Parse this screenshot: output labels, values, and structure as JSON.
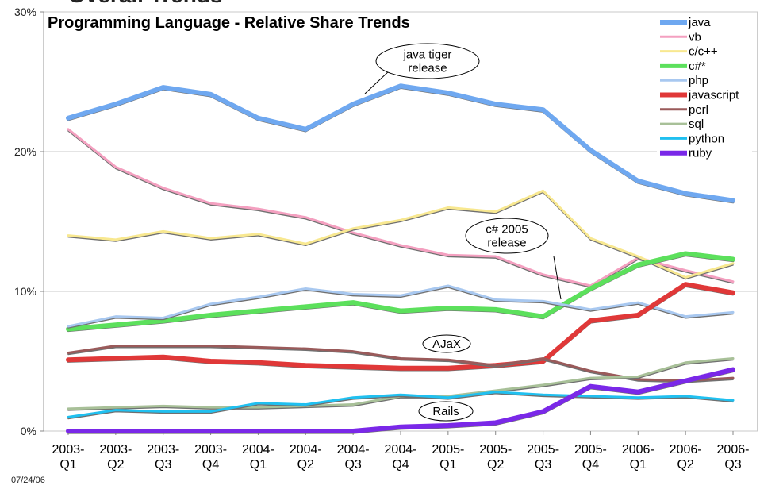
{
  "cut_title": "Overall Trends",
  "date_stamp": "07/24/06",
  "chart_data": {
    "type": "line",
    "title": "Programming Language - Relative Share Trends",
    "xlabel": "",
    "ylabel": "",
    "ylim": [
      0,
      30
    ],
    "yticks": [
      {
        "value": 0,
        "label": "0%"
      },
      {
        "value": 10,
        "label": "10%"
      },
      {
        "value": 20,
        "label": "20%"
      },
      {
        "value": 30,
        "label": "30%"
      }
    ],
    "grid": true,
    "legend": "top-right",
    "categories": [
      [
        "2003-",
        "Q1"
      ],
      [
        "2003-",
        "Q2"
      ],
      [
        "2003-",
        "Q3"
      ],
      [
        "2003-",
        "Q4"
      ],
      [
        "2004-",
        "Q1"
      ],
      [
        "2004-",
        "Q2"
      ],
      [
        "2004-",
        "Q3"
      ],
      [
        "2004-",
        "Q4"
      ],
      [
        "2005-",
        "Q1"
      ],
      [
        "2005-",
        "Q2"
      ],
      [
        "2005-",
        "Q3"
      ],
      [
        "2005-",
        "Q4"
      ],
      [
        "2006-",
        "Q1"
      ],
      [
        "2006-",
        "Q2"
      ],
      [
        "2006-",
        "Q3"
      ]
    ],
    "series": [
      {
        "name": "java",
        "color": "#6fa8f0",
        "width": 6,
        "values": [
          22.4,
          23.4,
          24.6,
          24.1,
          22.4,
          21.6,
          23.4,
          24.7,
          24.2,
          23.4,
          23.0,
          20.1,
          17.9,
          17.0,
          16.5
        ]
      },
      {
        "name": "vb",
        "color": "#f4a0c0",
        "width": 3,
        "values": [
          21.6,
          18.9,
          17.4,
          16.3,
          15.9,
          15.3,
          14.2,
          13.3,
          12.6,
          12.5,
          11.2,
          10.4,
          12.4,
          11.5,
          10.7
        ]
      },
      {
        "name": "c/c++",
        "color": "#f8e890",
        "width": 3,
        "values": [
          14.0,
          13.7,
          14.3,
          13.8,
          14.1,
          13.4,
          14.5,
          15.1,
          16.0,
          15.7,
          17.2,
          13.8,
          12.5,
          11.0,
          12.0
        ]
      },
      {
        "name": "c#*",
        "color": "#5ce05c",
        "width": 6,
        "values": [
          7.3,
          7.6,
          7.9,
          8.3,
          8.6,
          8.9,
          9.2,
          8.6,
          8.8,
          8.7,
          8.2,
          10.2,
          11.9,
          12.7,
          12.3
        ]
      },
      {
        "name": "php",
        "color": "#a8c8f0",
        "width": 3,
        "values": [
          7.5,
          8.2,
          8.1,
          9.1,
          9.6,
          10.2,
          9.8,
          9.7,
          10.4,
          9.4,
          9.3,
          8.7,
          9.2,
          8.2,
          8.5
        ]
      },
      {
        "name": "javascript",
        "color": "#e03838",
        "width": 6,
        "values": [
          5.1,
          5.2,
          5.3,
          5.0,
          4.9,
          4.7,
          4.6,
          4.5,
          4.5,
          4.7,
          5.0,
          7.9,
          8.3,
          10.5,
          9.9
        ]
      },
      {
        "name": "perl",
        "color": "#9a5a5a",
        "width": 3,
        "values": [
          5.6,
          6.1,
          6.1,
          6.1,
          6.0,
          5.9,
          5.7,
          5.2,
          5.1,
          4.7,
          5.2,
          4.3,
          3.7,
          3.6,
          3.8
        ]
      },
      {
        "name": "sql",
        "color": "#a8c098",
        "width": 3,
        "values": [
          1.6,
          1.7,
          1.8,
          1.7,
          1.7,
          1.8,
          1.9,
          2.5,
          2.5,
          2.9,
          3.3,
          3.8,
          3.9,
          4.9,
          5.2
        ]
      },
      {
        "name": "python",
        "color": "#20c0f0",
        "width": 3,
        "values": [
          1.0,
          1.5,
          1.4,
          1.4,
          2.0,
          1.9,
          2.4,
          2.6,
          2.4,
          2.8,
          2.6,
          2.5,
          2.4,
          2.5,
          2.2
        ]
      },
      {
        "name": "ruby",
        "color": "#7a28e8",
        "width": 6,
        "values": [
          0.0,
          0.0,
          0.0,
          0.0,
          0.0,
          0.0,
          0.0,
          0.3,
          0.4,
          0.6,
          1.4,
          3.2,
          2.8,
          3.6,
          4.4
        ]
      }
    ],
    "annotations": [
      {
        "text_lines": [
          "java tiger",
          "release"
        ],
        "anchor_category": "2004-Q3",
        "anchor_value": 24.0
      },
      {
        "text_lines": [
          "c# 2005",
          "release"
        ],
        "anchor_category": "2005-Q3",
        "anchor_value": 9.6
      },
      {
        "text_lines": [
          "AJaX"
        ],
        "anchor_category": "2005-Q1",
        "anchor_value": 5.9
      },
      {
        "text_lines": [
          "Rails"
        ],
        "anchor_category": "2005-Q1",
        "anchor_value": 1.4
      }
    ]
  }
}
